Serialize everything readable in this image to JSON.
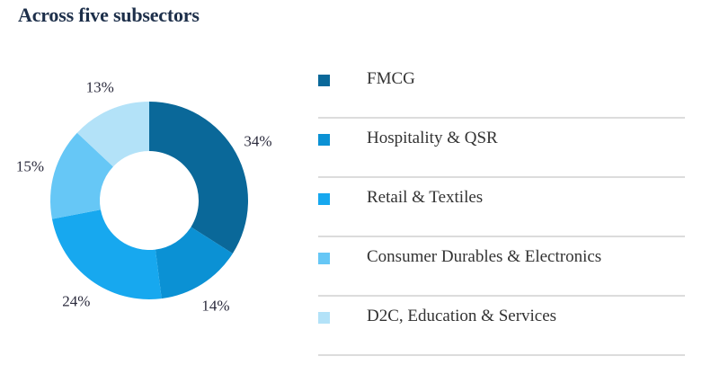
{
  "title": "Across five subsectors",
  "chart_data": {
    "type": "pie",
    "subtype": "donut",
    "title": "Across five subsectors",
    "categories": [
      "FMCG",
      "Hospitality & QSR",
      "Retail & Textiles",
      "Consumer Durables & Electronics",
      "D2C, Education & Services"
    ],
    "values": [
      34,
      14,
      24,
      15,
      13
    ],
    "labels": [
      "34%",
      "14%",
      "24%",
      "15%",
      "13%"
    ],
    "colors": [
      "#0a6899",
      "#0b91d4",
      "#17a8ef",
      "#66c7f6",
      "#b3e2f8"
    ],
    "legend_placement": "right"
  }
}
